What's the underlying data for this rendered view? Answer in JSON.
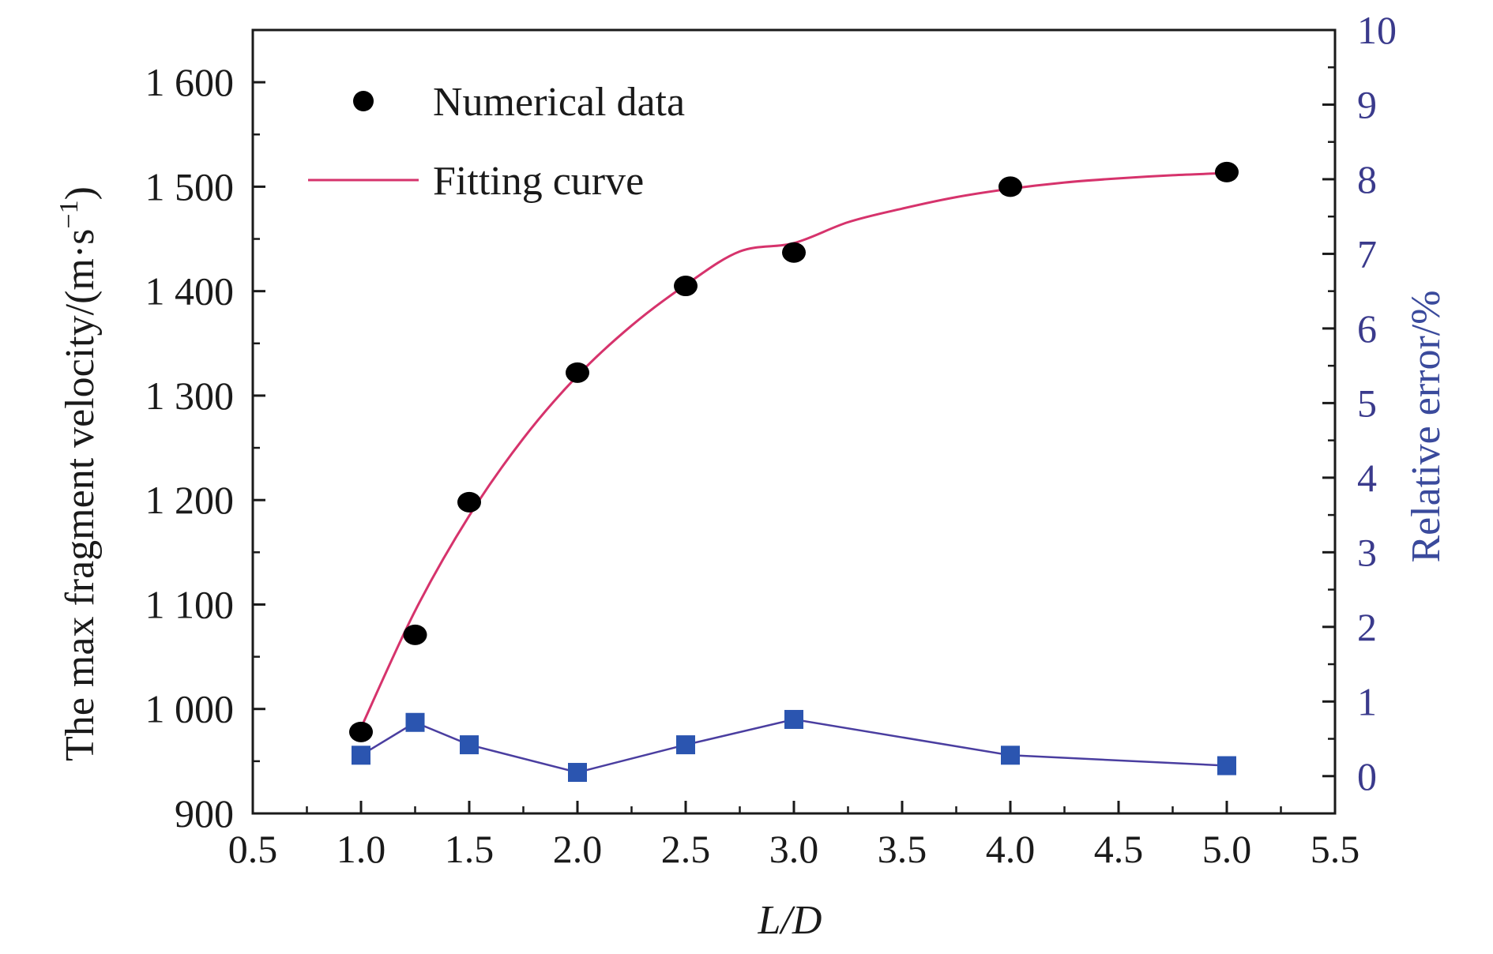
{
  "chart_data": {
    "type": "scatter",
    "x": [
      1.0,
      1.25,
      1.5,
      2.0,
      2.5,
      3.0,
      4.0,
      5.0
    ],
    "series": [
      {
        "name": "Numerical data",
        "axis": "left",
        "kind": "scatter",
        "marker": "circle",
        "color": "#000000",
        "values": [
          978,
          1071,
          1198,
          1322,
          1405,
          1437,
          1500,
          1514
        ]
      },
      {
        "name": "Fitting curve",
        "axis": "left",
        "kind": "line",
        "color": "#d6336c",
        "x": [
          1.0,
          1.25,
          1.5,
          1.75,
          2.0,
          2.25,
          2.5,
          2.75,
          3.0,
          3.25,
          3.5,
          3.75,
          4.0,
          4.25,
          4.5,
          4.75,
          5.0
        ],
        "values": [
          982,
          1094,
          1185,
          1259,
          1319,
          1367,
          1406,
          1438,
          1446,
          1466,
          1479,
          1490,
          1498,
          1504,
          1508,
          1511,
          1513
        ]
      },
      {
        "name": "",
        "axis": "right",
        "kind": "line-marker",
        "marker": "square",
        "color": "#2b55b0",
        "line_color": "#4a3ea0",
        "values": [
          0.28,
          0.72,
          0.42,
          0.05,
          0.42,
          0.76,
          0.28,
          0.14
        ]
      }
    ],
    "xlabel": "L/D",
    "ylabel_left": "The max fragment velocity/(m·s−1)",
    "ylabel_left_main": "The max fragment velocity/(m·s",
    "ylabel_left_sup": "−1",
    "ylabel_left_end": ")",
    "ylabel_right": "Relative error/%",
    "xlim": [
      0.5,
      5.5
    ],
    "ylim_left": [
      900,
      1650
    ],
    "ylim_right": [
      -0.5,
      10
    ],
    "x_ticks": [
      "0.5",
      "1.0",
      "1.5",
      "2.0",
      "2.5",
      "3.0",
      "3.5",
      "4.0",
      "4.5",
      "5.0",
      "5.5"
    ],
    "y_left_ticks": [
      "900",
      "1 000",
      "1 100",
      "1 200",
      "1 300",
      "1 400",
      "1 500",
      "1 600"
    ],
    "y_right_ticks": [
      "0",
      "1",
      "2",
      "3",
      "4",
      "5",
      "6",
      "7",
      "8",
      "9",
      "10"
    ],
    "legend": {
      "position": "top-left",
      "items": [
        "Numerical data",
        "Fitting curve"
      ]
    },
    "grid": false
  }
}
